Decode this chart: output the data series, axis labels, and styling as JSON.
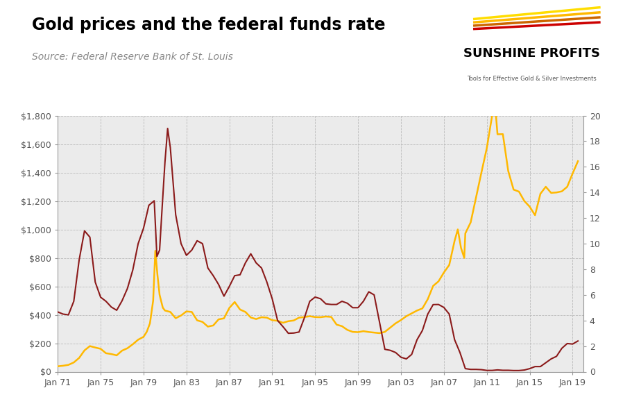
{
  "title": "Gold prices and the federal funds rate",
  "source": "Source: Federal Reserve Bank of St. Louis",
  "gold_color": "#FFB800",
  "ffr_color": "#8B1A1A",
  "background_color": "#E8E8E8",
  "plot_bg_color": "#EBEBEB",
  "grid_color": "#CCCCCC",
  "left_ylim": [
    0,
    1800
  ],
  "right_ylim": [
    0,
    20
  ],
  "left_yticks": [
    0,
    200,
    400,
    600,
    800,
    1000,
    1200,
    1400,
    1600,
    1800
  ],
  "right_yticks": [
    0,
    2,
    4,
    6,
    8,
    10,
    12,
    14,
    16,
    18,
    20
  ],
  "xtick_labels": [
    "Jan 71",
    "Jan 75",
    "Jan 79",
    "Jan 83",
    "Jan 87",
    "Jan 91",
    "Jan 95",
    "Jan 99",
    "Jan 03",
    "Jan 07",
    "Jan 11",
    "Jan 15",
    "Jan 19"
  ],
  "xtick_years": [
    1971,
    1975,
    1979,
    1983,
    1987,
    1991,
    1995,
    1999,
    2003,
    2007,
    2011,
    2015,
    2019
  ],
  "gold_years": [
    1971,
    1972,
    1973,
    1974,
    1975,
    1976,
    1977,
    1978,
    1979,
    1980,
    1981,
    1982,
    1983,
    1984,
    1985,
    1986,
    1987,
    1988,
    1989,
    1990,
    1991,
    1992,
    1993,
    1994,
    1995,
    1996,
    1997,
    1998,
    1999,
    2000,
    2001,
    2002,
    2003,
    2004,
    2005,
    2006,
    2007,
    2008,
    2009,
    2010,
    2011,
    2012,
    2013,
    2014,
    2015,
    2016,
    2017,
    2018,
    2019
  ],
  "gold_prices": [
    40,
    48,
    65,
    154,
    161,
    124,
    148,
    193,
    306,
    612,
    460,
    376,
    424,
    361,
    317,
    368,
    448,
    437,
    381,
    383,
    362,
    344,
    360,
    384,
    384,
    388,
    331,
    294,
    278,
    279,
    271,
    310,
    363,
    410,
    445,
    603,
    697,
    872,
    972,
    1225,
    1571,
    1669,
    1411,
    1266,
    1160,
    1251,
    1257,
    1268,
    1393
  ],
  "ffr_years": [
    1971,
    1972,
    1973,
    1974,
    1975,
    1976,
    1977,
    1978,
    1979,
    1980,
    1981,
    1982,
    1983,
    1984,
    1985,
    1986,
    1987,
    1988,
    1989,
    1990,
    1991,
    1992,
    1993,
    1994,
    1995,
    1996,
    1997,
    1998,
    1999,
    2000,
    2001,
    2002,
    2003,
    2004,
    2005,
    2006,
    2007,
    2008,
    2009,
    2010,
    2011,
    2012,
    2013,
    2014,
    2015,
    2016,
    2017,
    2018,
    2019
  ],
  "ffr_rates": [
    4.67,
    4.44,
    8.73,
    10.51,
    5.82,
    5.05,
    5.54,
    7.94,
    11.2,
    13.35,
    16.38,
    12.26,
    9.09,
    10.23,
    8.1,
    6.81,
    6.66,
    7.57,
    9.21,
    8.1,
    5.69,
    3.52,
    3.02,
    4.21,
    5.83,
    5.3,
    5.25,
    5.35,
    5.0,
    6.24,
    3.88,
    1.67,
    1.13,
    1.35,
    3.22,
    5.24,
    5.02,
    1.93,
    0.24,
    0.18,
    0.1,
    0.14,
    0.11,
    0.09,
    0.24,
    0.4,
    1.0,
    1.83,
    2.16
  ]
}
